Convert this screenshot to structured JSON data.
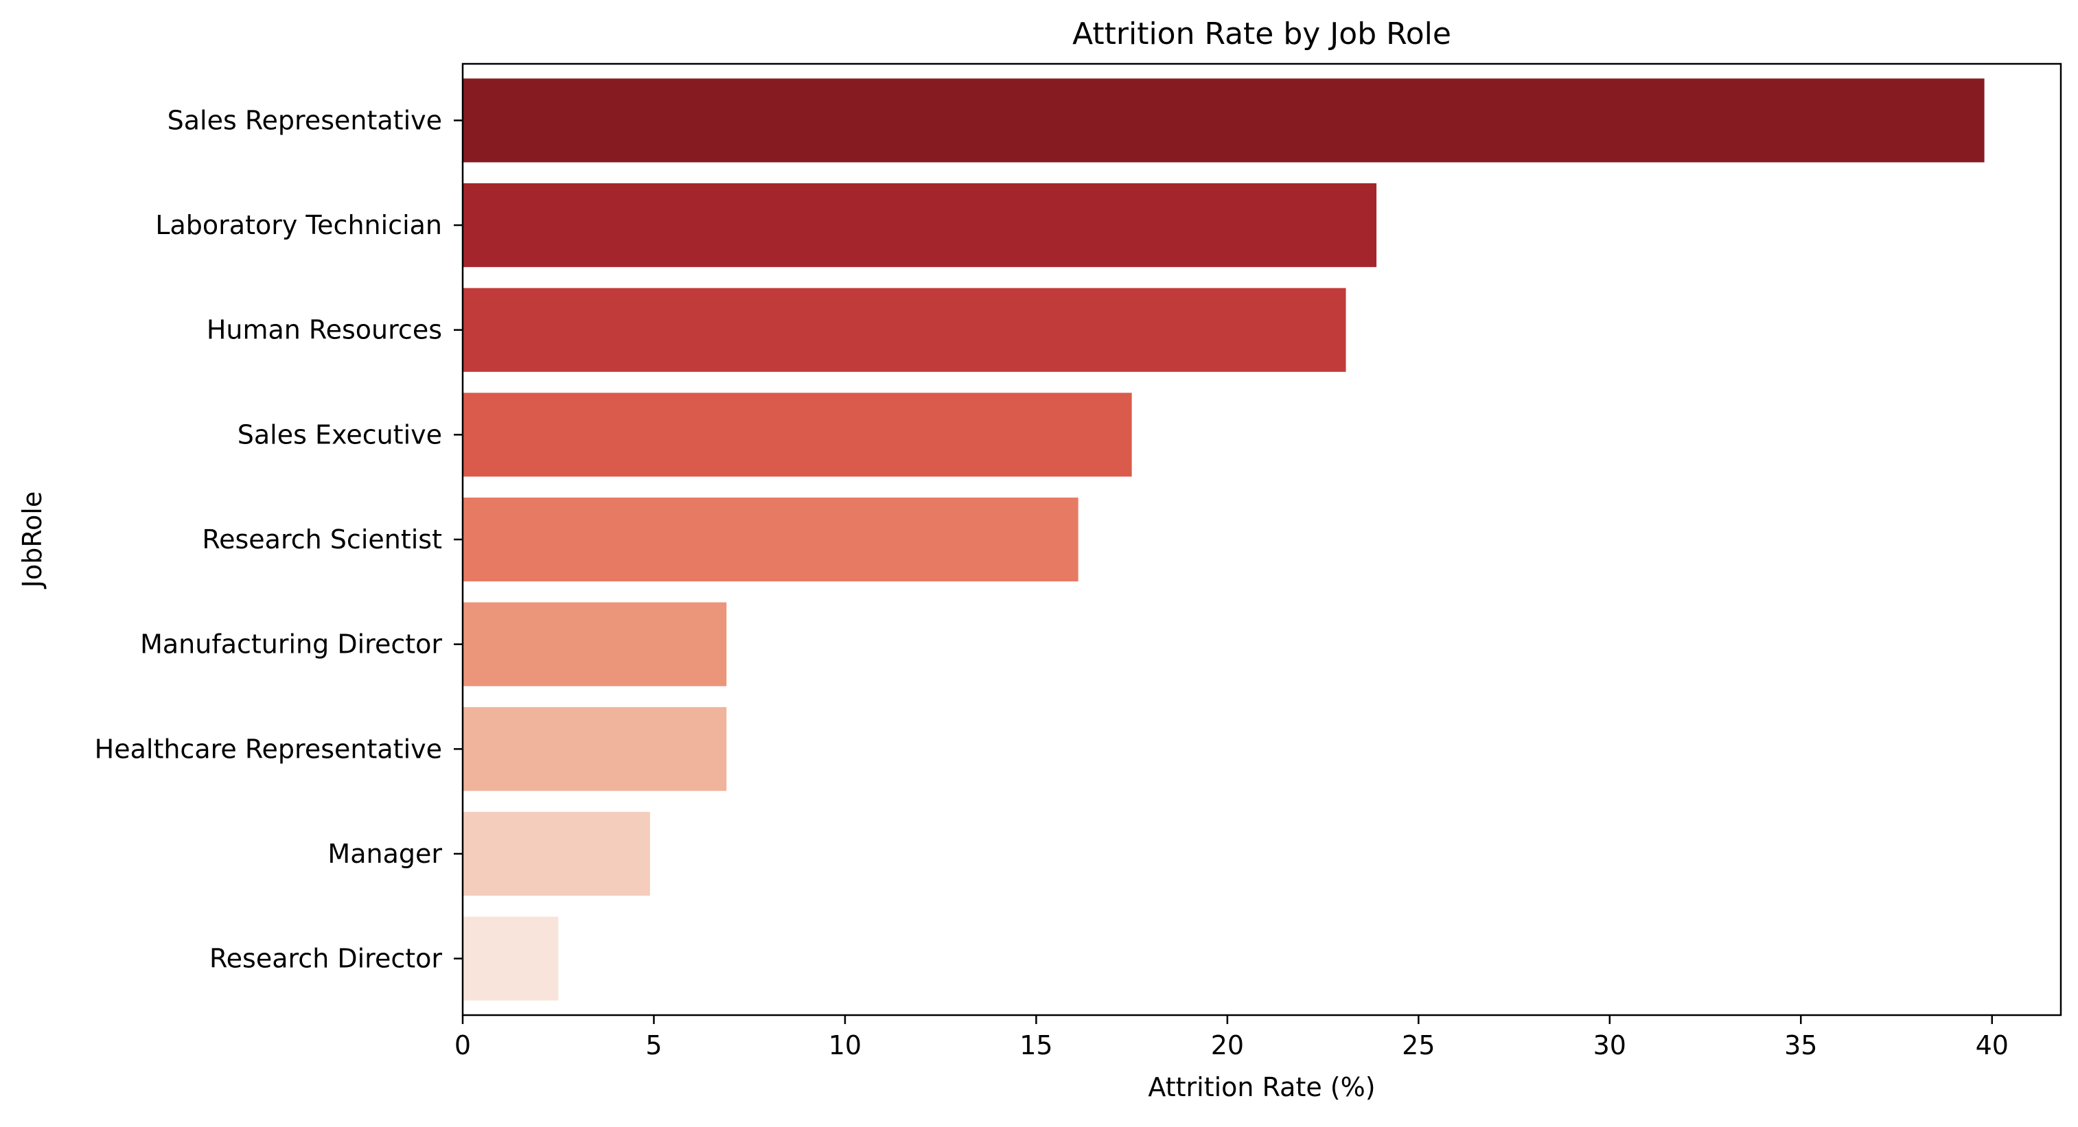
{
  "chart_data": {
    "type": "bar",
    "orientation": "horizontal",
    "title": "Attrition Rate by Job Role",
    "xlabel": "Attrition Rate (%)",
    "ylabel": "JobRole",
    "categories": [
      "Sales Representative",
      "Laboratory Technician",
      "Human Resources",
      "Sales Executive",
      "Research Scientist",
      "Manufacturing Director",
      "Healthcare Representative",
      "Manager",
      "Research Director"
    ],
    "values": [
      39.8,
      23.9,
      23.1,
      17.5,
      16.1,
      6.9,
      6.9,
      4.9,
      2.5
    ],
    "colors": [
      "#861c22",
      "#a4262c",
      "#c13b3a",
      "#da5a4b",
      "#e77a62",
      "#eb957b",
      "#f0b39c",
      "#f4cdbd",
      "#f8e4da"
    ],
    "xlim": [
      0,
      41.8
    ],
    "xticks": [
      0,
      5,
      10,
      15,
      20,
      25,
      30,
      35,
      40
    ],
    "grid": false,
    "legend": "none"
  }
}
